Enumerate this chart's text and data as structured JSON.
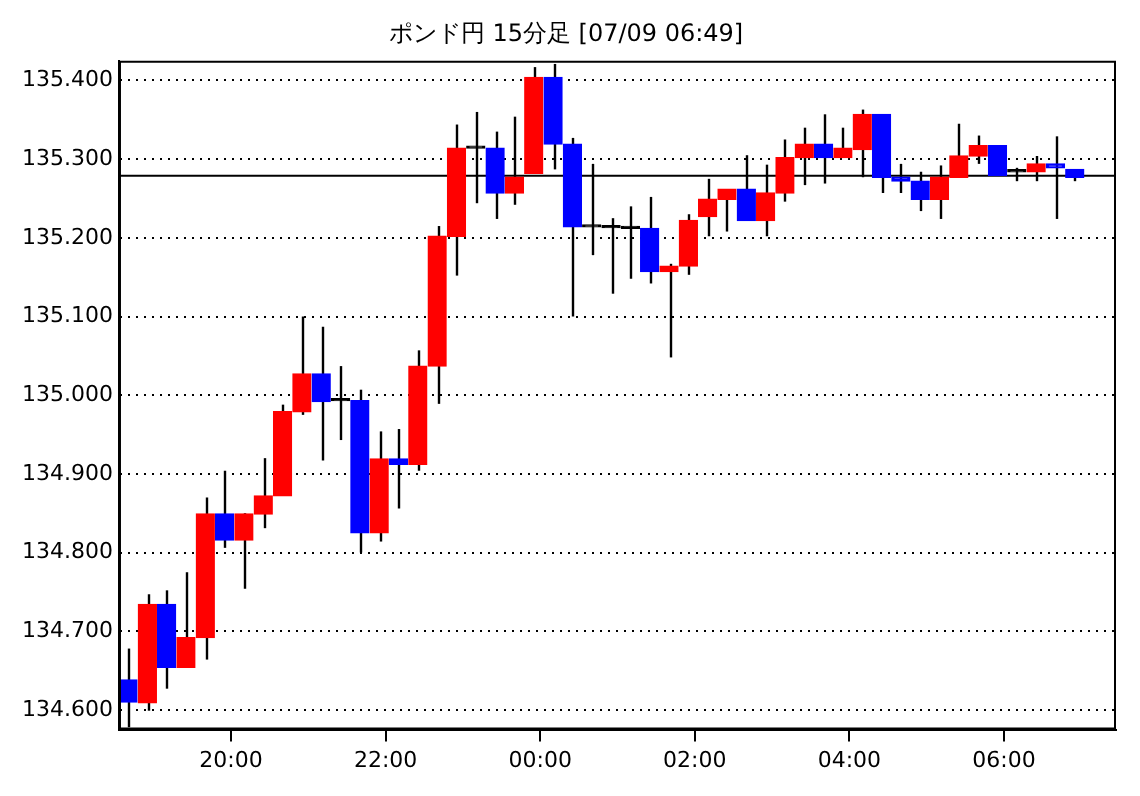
{
  "chart_data": {
    "type": "candlestick",
    "title": "ポンド円 15分足 [07/09 06:49]",
    "x": [
      "--07-08T18:40",
      "--07-08T18:55",
      "--07-08T19:10",
      "--07-08T19:25",
      "--07-08T19:40",
      "--07-08T19:55",
      "--07-08T20:10",
      "--07-08T20:25",
      "--07-08T20:40",
      "--07-08T20:55",
      "--07-08T21:10",
      "--07-08T21:25",
      "--07-08T21:40",
      "--07-08T21:55",
      "--07-08T22:10",
      "--07-08T22:25",
      "--07-08T22:40",
      "--07-08T22:55",
      "--07-08T23:10",
      "--07-08T23:25",
      "--07-08T23:40",
      "--07-08T23:55",
      "--07-09T00:10",
      "--07-09T00:25",
      "--07-09T00:40",
      "--07-09T00:55",
      "--07-09T01:10",
      "--07-09T01:25",
      "--07-09T01:40",
      "--07-09T01:55",
      "--07-09T02:10",
      "--07-09T02:25",
      "--07-09T02:40",
      "--07-09T02:55",
      "--07-09T03:10",
      "--07-09T03:25",
      "--07-09T03:40",
      "--07-09T03:55",
      "--07-09T04:10",
      "--07-09T04:25",
      "--07-09T04:40",
      "--07-09T04:55",
      "--07-09T05:10",
      "--07-09T05:25",
      "--07-09T05:40",
      "--07-09T05:55",
      "--07-09T06:10",
      "--07-09T06:25",
      "--07-09T06:40",
      "--07-09T06:55"
    ],
    "ohlc": [
      [
        134.638,
        134.678,
        134.578,
        134.61
      ],
      [
        134.609,
        134.747,
        134.599,
        134.734
      ],
      [
        134.734,
        134.752,
        134.627,
        134.654
      ],
      [
        134.654,
        134.775,
        134.654,
        134.692
      ],
      [
        134.692,
        134.87,
        134.664,
        134.849
      ],
      [
        134.849,
        134.904,
        134.806,
        134.816
      ],
      [
        134.816,
        134.85,
        134.754,
        134.849
      ],
      [
        134.849,
        134.92,
        134.831,
        134.872
      ],
      [
        134.872,
        134.988,
        134.872,
        134.979
      ],
      [
        134.979,
        135.1,
        134.975,
        135.027
      ],
      [
        135.027,
        135.087,
        134.917,
        134.992
      ],
      [
        134.993,
        135.037,
        134.943,
        134.993
      ],
      [
        134.993,
        135.007,
        134.8,
        134.825
      ],
      [
        134.825,
        134.954,
        134.814,
        134.919
      ],
      [
        134.919,
        134.957,
        134.856,
        134.912
      ],
      [
        134.912,
        135.057,
        134.904,
        135.037
      ],
      [
        135.037,
        135.215,
        134.989,
        135.202
      ],
      [
        135.202,
        135.344,
        135.152,
        135.314
      ],
      [
        135.314,
        135.36,
        135.244,
        135.314
      ],
      [
        135.314,
        135.335,
        135.224,
        135.257
      ],
      [
        135.257,
        135.354,
        135.242,
        135.277
      ],
      [
        135.282,
        135.417,
        135.282,
        135.404
      ],
      [
        135.404,
        135.421,
        135.287,
        135.319
      ],
      [
        135.319,
        135.327,
        135.1,
        135.214
      ],
      [
        135.214,
        135.294,
        135.178,
        135.214
      ],
      [
        135.213,
        135.225,
        135.129,
        135.213
      ],
      [
        135.212,
        135.24,
        135.148,
        135.212
      ],
      [
        135.212,
        135.252,
        135.142,
        135.157
      ],
      [
        135.157,
        135.167,
        135.048,
        135.164
      ],
      [
        135.164,
        135.23,
        135.153,
        135.222
      ],
      [
        135.227,
        135.275,
        135.202,
        135.249
      ],
      [
        135.249,
        135.262,
        135.208,
        135.262
      ],
      [
        135.262,
        135.305,
        135.222,
        135.222
      ],
      [
        135.222,
        135.293,
        135.202,
        135.257
      ],
      [
        135.257,
        135.325,
        135.246,
        135.302
      ],
      [
        135.302,
        135.34,
        135.267,
        135.319
      ],
      [
        135.319,
        135.357,
        135.269,
        135.302
      ],
      [
        135.302,
        135.34,
        135.302,
        135.314
      ],
      [
        135.312,
        135.363,
        135.277,
        135.357
      ],
      [
        135.357,
        135.357,
        135.257,
        135.277
      ],
      [
        135.277,
        135.294,
        135.257,
        135.272
      ],
      [
        135.272,
        135.284,
        135.234,
        135.249
      ],
      [
        135.249,
        135.292,
        135.224,
        135.277
      ],
      [
        135.277,
        135.345,
        135.277,
        135.304
      ],
      [
        135.304,
        135.33,
        135.294,
        135.317
      ],
      [
        135.317,
        135.317,
        135.279,
        135.279
      ],
      [
        135.284,
        135.289,
        135.272,
        135.284
      ],
      [
        135.284,
        135.304,
        135.272,
        135.294
      ],
      [
        135.294,
        135.329,
        135.224,
        135.289
      ],
      [
        135.287,
        135.287,
        135.272,
        135.277
      ]
    ],
    "colors": [
      "#0000ff",
      "#ff0000",
      "#0000ff",
      "#ff0000",
      "#ff0000",
      "#0000ff",
      "#ff0000",
      "#ff0000",
      "#ff0000",
      "#ff0000",
      "#0000ff",
      "#000000",
      "#0000ff",
      "#ff0000",
      "#0000ff",
      "#ff0000",
      "#ff0000",
      "#ff0000",
      "#000000",
      "#0000ff",
      "#ff0000",
      "#ff0000",
      "#0000ff",
      "#0000ff",
      "#000000",
      "#000000",
      "#000000",
      "#0000ff",
      "#ff0000",
      "#ff0000",
      "#ff0000",
      "#ff0000",
      "#0000ff",
      "#ff0000",
      "#ff0000",
      "#ff0000",
      "#0000ff",
      "#ff0000",
      "#ff0000",
      "#0000ff",
      "#0000ff",
      "#0000ff",
      "#ff0000",
      "#ff0000",
      "#ff0000",
      "#0000ff",
      "#000000",
      "#ff0000",
      "#0000ff",
      "#0000ff"
    ],
    "xlim": [
      "--07-08T18:33",
      "--07-09T07:27"
    ],
    "xticks": [
      {
        "value": "--07-08T20:00",
        "label": "20:00"
      },
      {
        "value": "--07-08T22:00",
        "label": "22:00"
      },
      {
        "value": "--07-09T00:00",
        "label": "00:00"
      },
      {
        "value": "--07-09T02:00",
        "label": "02:00"
      },
      {
        "value": "--07-09T04:00",
        "label": "04:00"
      },
      {
        "value": "--07-09T06:00",
        "label": "06:00"
      }
    ],
    "ylim": [
      134.575,
      135.425
    ],
    "yticks": [
      {
        "value": 134.6,
        "label": "134.600"
      },
      {
        "value": 134.7,
        "label": "134.700"
      },
      {
        "value": 134.8,
        "label": "134.800"
      },
      {
        "value": 134.9,
        "label": "134.900"
      },
      {
        "value": 135.0,
        "label": "135.000"
      },
      {
        "value": 135.1,
        "label": "135.100"
      },
      {
        "value": 135.2,
        "label": "135.200"
      },
      {
        "value": 135.3,
        "label": "135.300"
      },
      {
        "value": 135.4,
        "label": "135.400"
      }
    ],
    "grid": "y",
    "legend": false,
    "ref_lines": [
      {
        "axis": "y",
        "value": 135.279,
        "color": "#000000"
      }
    ]
  }
}
